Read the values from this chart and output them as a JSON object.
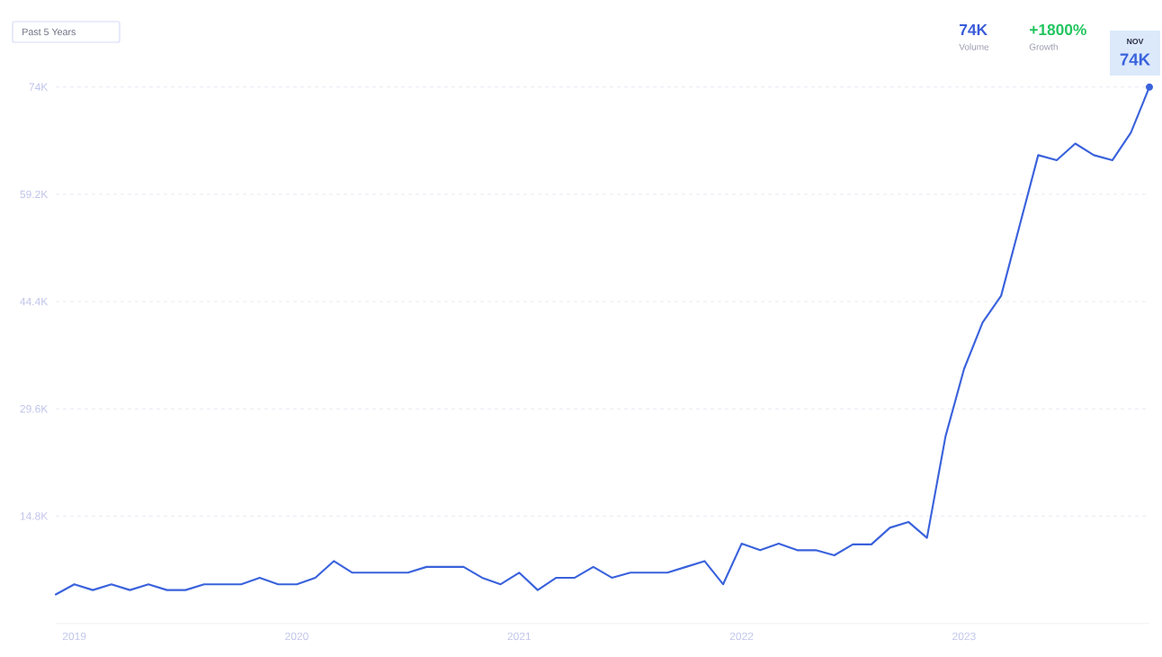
{
  "chart_data": {
    "type": "line",
    "annotations": [
      "Past 5 Years",
      "74K",
      "Volume",
      "+1800%",
      "Growth",
      "NOV",
      {
        "text": "74K",
        "x": "2023-11",
        "y": 74000
      }
    ],
    "x": [
      "2018-12",
      "2019-01",
      "2019-02",
      "2019-03",
      "2019-04",
      "2019-05",
      "2019-06",
      "2019-07",
      "2019-08",
      "2019-09",
      "2019-10",
      "2019-11",
      "2019-12",
      "2020-01",
      "2020-02",
      "2020-03",
      "2020-04",
      "2020-05",
      "2020-06",
      "2020-07",
      "2020-08",
      "2020-09",
      "2020-10",
      "2020-11",
      "2020-12",
      "2021-01",
      "2021-02",
      "2021-03",
      "2021-04",
      "2021-05",
      "2021-06",
      "2021-07",
      "2021-08",
      "2021-09",
      "2021-10",
      "2021-11",
      "2021-12",
      "2022-01",
      "2022-02",
      "2022-03",
      "2022-04",
      "2022-05",
      "2022-06",
      "2022-07",
      "2022-08",
      "2022-09",
      "2022-10",
      "2022-11",
      "2022-12",
      "2023-01",
      "2023-02",
      "2023-03",
      "2023-04",
      "2023-05",
      "2023-06",
      "2023-07",
      "2023-08",
      "2023-09",
      "2023-10",
      "2023-11"
    ],
    "values": [
      4000,
      5400,
      4600,
      5400,
      4600,
      5400,
      4600,
      4600,
      5400,
      5400,
      5400,
      6300,
      5400,
      5400,
      6300,
      8600,
      7000,
      7000,
      7000,
      7000,
      7800,
      7800,
      7800,
      6300,
      5400,
      7000,
      4600,
      6300,
      6300,
      7800,
      6300,
      7000,
      7000,
      7000,
      7800,
      8600,
      5400,
      11000,
      10100,
      11000,
      10100,
      10100,
      9400,
      10900,
      10900,
      13200,
      14000,
      11800,
      25800,
      35100,
      41500,
      45200,
      54900,
      64600,
      63900,
      66200,
      64600,
      63900,
      67700,
      74000
    ],
    "color": "#3a62dc",
    "xlim": [
      "2018-12",
      "2023-11"
    ],
    "xticks": [
      "2019",
      "2020",
      "2021",
      "2022",
      "2023"
    ],
    "ylim": [
      0,
      74000
    ],
    "yticks": [
      {
        "value": 14800,
        "label": "14.8K"
      },
      {
        "value": 29600,
        "label": "29.6K"
      },
      {
        "value": 44400,
        "label": "44.4K"
      },
      {
        "value": 59200,
        "label": "59.2K"
      },
      {
        "value": 74000,
        "label": "74K"
      }
    ],
    "grid": "y"
  }
}
